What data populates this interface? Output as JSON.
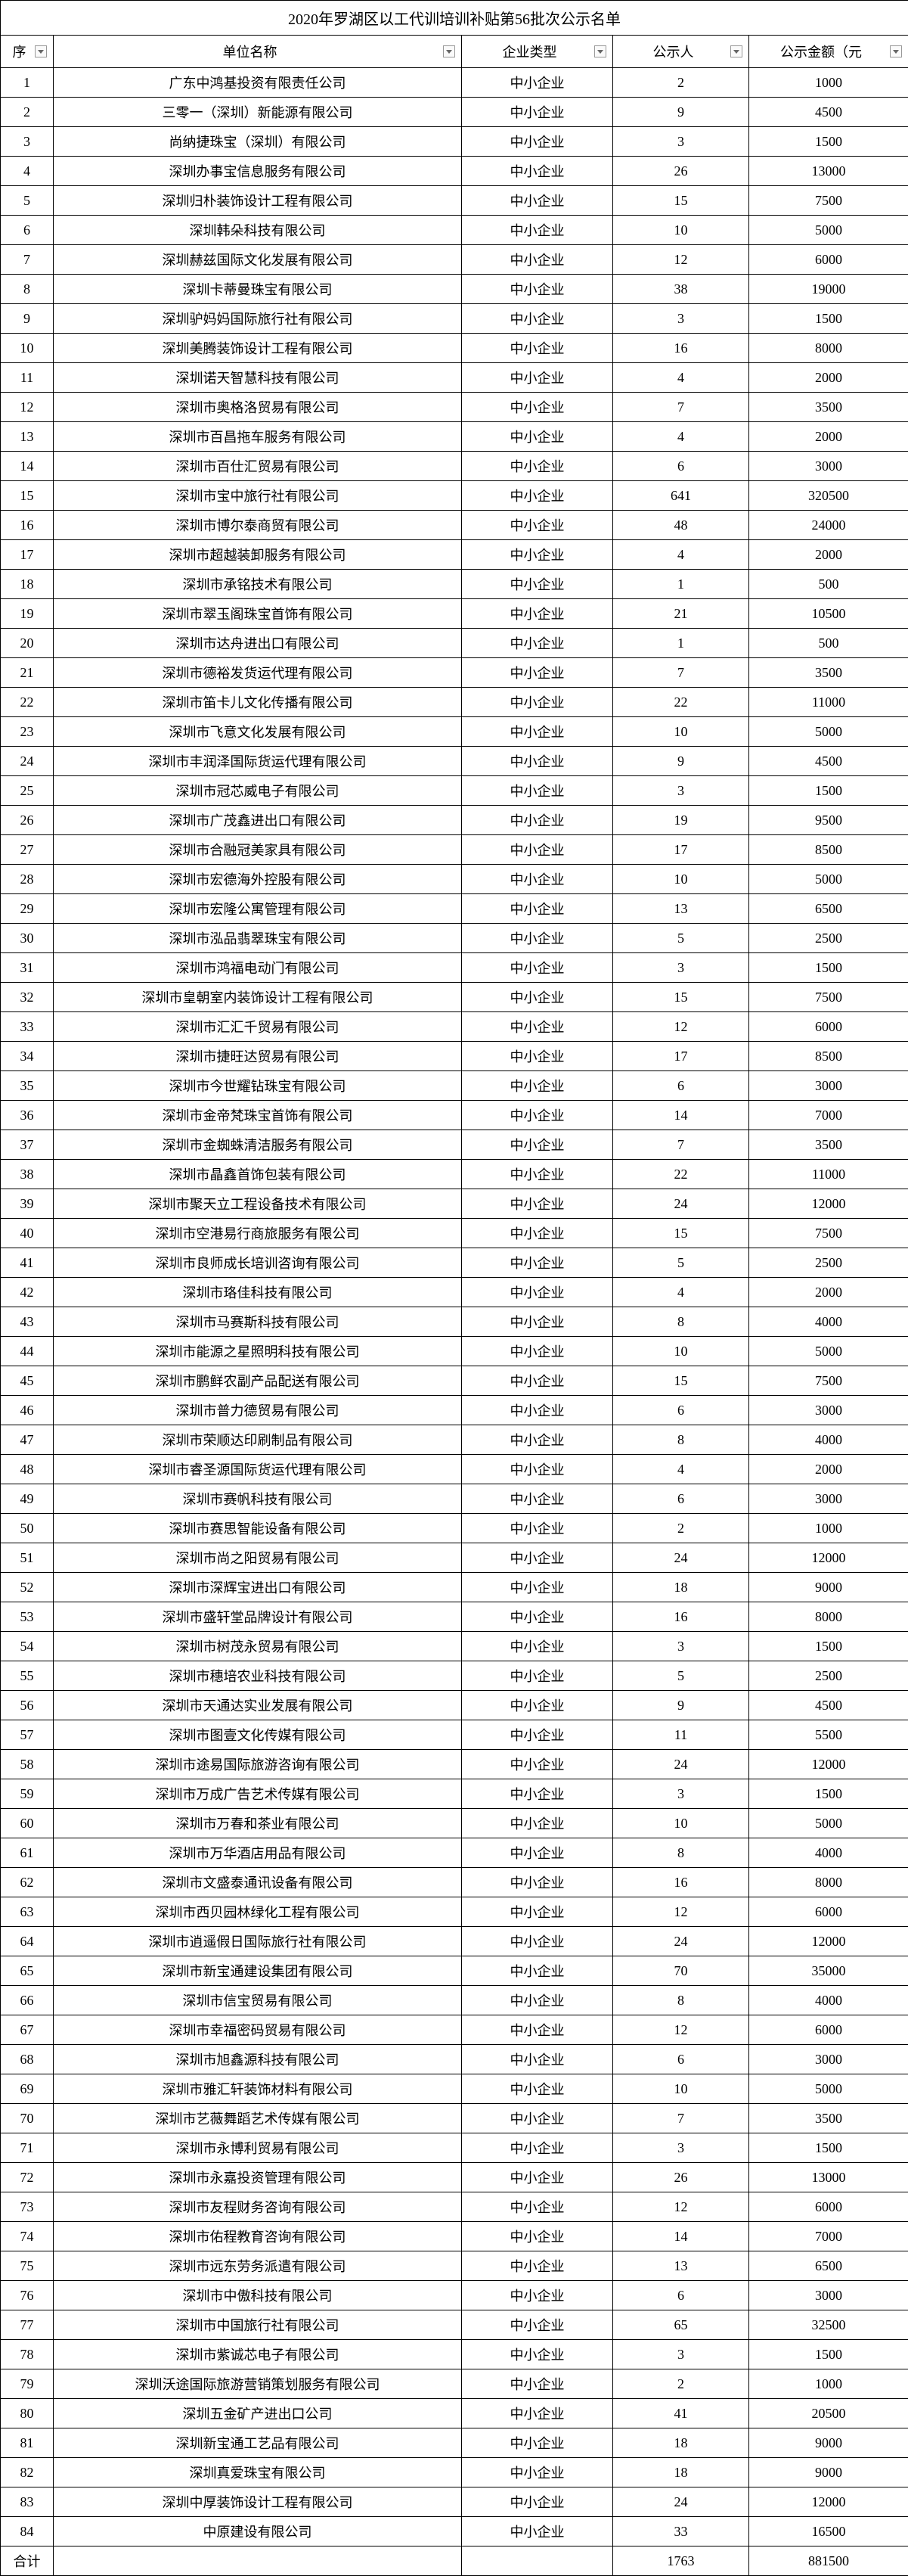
{
  "title": "2020年罗湖区以工代训培训补贴第56批次公示名单",
  "columns": {
    "seq": "序",
    "name": "单位名称",
    "type": "企业类型",
    "people": "公示人",
    "amount": "公示金额（元"
  },
  "total_label": "合计",
  "total_people": "1763",
  "total_amount": "881500",
  "rows": [
    {
      "seq": "1",
      "name": "广东中鸿基投资有限责任公司",
      "type": "中小企业",
      "people": "2",
      "amount": "1000"
    },
    {
      "seq": "2",
      "name": "三零一（深圳）新能源有限公司",
      "type": "中小企业",
      "people": "9",
      "amount": "4500"
    },
    {
      "seq": "3",
      "name": "尚纳捷珠宝（深圳）有限公司",
      "type": "中小企业",
      "people": "3",
      "amount": "1500"
    },
    {
      "seq": "4",
      "name": "深圳办事宝信息服务有限公司",
      "type": "中小企业",
      "people": "26",
      "amount": "13000"
    },
    {
      "seq": "5",
      "name": "深圳归朴装饰设计工程有限公司",
      "type": "中小企业",
      "people": "15",
      "amount": "7500"
    },
    {
      "seq": "6",
      "name": "深圳韩朵科技有限公司",
      "type": "中小企业",
      "people": "10",
      "amount": "5000"
    },
    {
      "seq": "7",
      "name": "深圳赫兹国际文化发展有限公司",
      "type": "中小企业",
      "people": "12",
      "amount": "6000"
    },
    {
      "seq": "8",
      "name": "深圳卡蒂曼珠宝有限公司",
      "type": "中小企业",
      "people": "38",
      "amount": "19000"
    },
    {
      "seq": "9",
      "name": "深圳驴妈妈国际旅行社有限公司",
      "type": "中小企业",
      "people": "3",
      "amount": "1500"
    },
    {
      "seq": "10",
      "name": "深圳美腾装饰设计工程有限公司",
      "type": "中小企业",
      "people": "16",
      "amount": "8000"
    },
    {
      "seq": "11",
      "name": "深圳诺天智慧科技有限公司",
      "type": "中小企业",
      "people": "4",
      "amount": "2000"
    },
    {
      "seq": "12",
      "name": "深圳市奥格洛贸易有限公司",
      "type": "中小企业",
      "people": "7",
      "amount": "3500"
    },
    {
      "seq": "13",
      "name": "深圳市百昌拖车服务有限公司",
      "type": "中小企业",
      "people": "4",
      "amount": "2000"
    },
    {
      "seq": "14",
      "name": "深圳市百仕汇贸易有限公司",
      "type": "中小企业",
      "people": "6",
      "amount": "3000"
    },
    {
      "seq": "15",
      "name": "深圳市宝中旅行社有限公司",
      "type": "中小企业",
      "people": "641",
      "amount": "320500"
    },
    {
      "seq": "16",
      "name": "深圳市博尔泰商贸有限公司",
      "type": "中小企业",
      "people": "48",
      "amount": "24000"
    },
    {
      "seq": "17",
      "name": "深圳市超越装卸服务有限公司",
      "type": "中小企业",
      "people": "4",
      "amount": "2000"
    },
    {
      "seq": "18",
      "name": "深圳市承铭技术有限公司",
      "type": "中小企业",
      "people": "1",
      "amount": "500"
    },
    {
      "seq": "19",
      "name": "深圳市翠玉阁珠宝首饰有限公司",
      "type": "中小企业",
      "people": "21",
      "amount": "10500"
    },
    {
      "seq": "20",
      "name": "深圳市达舟进出口有限公司",
      "type": "中小企业",
      "people": "1",
      "amount": "500"
    },
    {
      "seq": "21",
      "name": "深圳市德裕发货运代理有限公司",
      "type": "中小企业",
      "people": "7",
      "amount": "3500"
    },
    {
      "seq": "22",
      "name": "深圳市笛卡儿文化传播有限公司",
      "type": "中小企业",
      "people": "22",
      "amount": "11000"
    },
    {
      "seq": "23",
      "name": "深圳市飞意文化发展有限公司",
      "type": "中小企业",
      "people": "10",
      "amount": "5000"
    },
    {
      "seq": "24",
      "name": "深圳市丰润泽国际货运代理有限公司",
      "type": "中小企业",
      "people": "9",
      "amount": "4500"
    },
    {
      "seq": "25",
      "name": "深圳市冠芯威电子有限公司",
      "type": "中小企业",
      "people": "3",
      "amount": "1500"
    },
    {
      "seq": "26",
      "name": "深圳市广茂鑫进出口有限公司",
      "type": "中小企业",
      "people": "19",
      "amount": "9500"
    },
    {
      "seq": "27",
      "name": "深圳市合融冠美家具有限公司",
      "type": "中小企业",
      "people": "17",
      "amount": "8500"
    },
    {
      "seq": "28",
      "name": "深圳市宏德海外控股有限公司",
      "type": "中小企业",
      "people": "10",
      "amount": "5000"
    },
    {
      "seq": "29",
      "name": "深圳市宏隆公寓管理有限公司",
      "type": "中小企业",
      "people": "13",
      "amount": "6500"
    },
    {
      "seq": "30",
      "name": "深圳市泓品翡翠珠宝有限公司",
      "type": "中小企业",
      "people": "5",
      "amount": "2500"
    },
    {
      "seq": "31",
      "name": "深圳市鸿福电动门有限公司",
      "type": "中小企业",
      "people": "3",
      "amount": "1500"
    },
    {
      "seq": "32",
      "name": "深圳市皇朝室内装饰设计工程有限公司",
      "type": "中小企业",
      "people": "15",
      "amount": "7500"
    },
    {
      "seq": "33",
      "name": "深圳市汇汇千贸易有限公司",
      "type": "中小企业",
      "people": "12",
      "amount": "6000"
    },
    {
      "seq": "34",
      "name": "深圳市捷旺达贸易有限公司",
      "type": "中小企业",
      "people": "17",
      "amount": "8500"
    },
    {
      "seq": "35",
      "name": "深圳市今世耀钻珠宝有限公司",
      "type": "中小企业",
      "people": "6",
      "amount": "3000"
    },
    {
      "seq": "36",
      "name": "深圳市金帝梵珠宝首饰有限公司",
      "type": "中小企业",
      "people": "14",
      "amount": "7000"
    },
    {
      "seq": "37",
      "name": "深圳市金蜘蛛清洁服务有限公司",
      "type": "中小企业",
      "people": "7",
      "amount": "3500"
    },
    {
      "seq": "38",
      "name": "深圳市晶鑫首饰包装有限公司",
      "type": "中小企业",
      "people": "22",
      "amount": "11000"
    },
    {
      "seq": "39",
      "name": "深圳市聚天立工程设备技术有限公司",
      "type": "中小企业",
      "people": "24",
      "amount": "12000"
    },
    {
      "seq": "40",
      "name": "深圳市空港易行商旅服务有限公司",
      "type": "中小企业",
      "people": "15",
      "amount": "7500"
    },
    {
      "seq": "41",
      "name": "深圳市良师成长培训咨询有限公司",
      "type": "中小企业",
      "people": "5",
      "amount": "2500"
    },
    {
      "seq": "42",
      "name": "深圳市珞佳科技有限公司",
      "type": "中小企业",
      "people": "4",
      "amount": "2000"
    },
    {
      "seq": "43",
      "name": "深圳市马赛斯科技有限公司",
      "type": "中小企业",
      "people": "8",
      "amount": "4000"
    },
    {
      "seq": "44",
      "name": "深圳市能源之星照明科技有限公司",
      "type": "中小企业",
      "people": "10",
      "amount": "5000"
    },
    {
      "seq": "45",
      "name": "深圳市鹏鲜农副产品配送有限公司",
      "type": "中小企业",
      "people": "15",
      "amount": "7500"
    },
    {
      "seq": "46",
      "name": "深圳市普力德贸易有限公司",
      "type": "中小企业",
      "people": "6",
      "amount": "3000"
    },
    {
      "seq": "47",
      "name": "深圳市荣顺达印刷制品有限公司",
      "type": "中小企业",
      "people": "8",
      "amount": "4000"
    },
    {
      "seq": "48",
      "name": "深圳市睿圣源国际货运代理有限公司",
      "type": "中小企业",
      "people": "4",
      "amount": "2000"
    },
    {
      "seq": "49",
      "name": "深圳市赛帆科技有限公司",
      "type": "中小企业",
      "people": "6",
      "amount": "3000"
    },
    {
      "seq": "50",
      "name": "深圳市赛思智能设备有限公司",
      "type": "中小企业",
      "people": "2",
      "amount": "1000"
    },
    {
      "seq": "51",
      "name": "深圳市尚之阳贸易有限公司",
      "type": "中小企业",
      "people": "24",
      "amount": "12000"
    },
    {
      "seq": "52",
      "name": "深圳市深辉宝进出口有限公司",
      "type": "中小企业",
      "people": "18",
      "amount": "9000"
    },
    {
      "seq": "53",
      "name": "深圳市盛轩堂品牌设计有限公司",
      "type": "中小企业",
      "people": "16",
      "amount": "8000"
    },
    {
      "seq": "54",
      "name": "深圳市树茂永贸易有限公司",
      "type": "中小企业",
      "people": "3",
      "amount": "1500"
    },
    {
      "seq": "55",
      "name": "深圳市穗培农业科技有限公司",
      "type": "中小企业",
      "people": "5",
      "amount": "2500"
    },
    {
      "seq": "56",
      "name": "深圳市天通达实业发展有限公司",
      "type": "中小企业",
      "people": "9",
      "amount": "4500"
    },
    {
      "seq": "57",
      "name": "深圳市图壹文化传媒有限公司",
      "type": "中小企业",
      "people": "11",
      "amount": "5500"
    },
    {
      "seq": "58",
      "name": "深圳市途易国际旅游咨询有限公司",
      "type": "中小企业",
      "people": "24",
      "amount": "12000"
    },
    {
      "seq": "59",
      "name": "深圳市万成广告艺术传媒有限公司",
      "type": "中小企业",
      "people": "3",
      "amount": "1500"
    },
    {
      "seq": "60",
      "name": "深圳市万春和茶业有限公司",
      "type": "中小企业",
      "people": "10",
      "amount": "5000"
    },
    {
      "seq": "61",
      "name": "深圳市万华酒店用品有限公司",
      "type": "中小企业",
      "people": "8",
      "amount": "4000"
    },
    {
      "seq": "62",
      "name": "深圳市文盛泰通讯设备有限公司",
      "type": "中小企业",
      "people": "16",
      "amount": "8000"
    },
    {
      "seq": "63",
      "name": "深圳市西贝园林绿化工程有限公司",
      "type": "中小企业",
      "people": "12",
      "amount": "6000"
    },
    {
      "seq": "64",
      "name": "深圳市逍遥假日国际旅行社有限公司",
      "type": "中小企业",
      "people": "24",
      "amount": "12000"
    },
    {
      "seq": "65",
      "name": "深圳市新宝通建设集团有限公司",
      "type": "中小企业",
      "people": "70",
      "amount": "35000"
    },
    {
      "seq": "66",
      "name": "深圳市信宝贸易有限公司",
      "type": "中小企业",
      "people": "8",
      "amount": "4000"
    },
    {
      "seq": "67",
      "name": "深圳市幸福密码贸易有限公司",
      "type": "中小企业",
      "people": "12",
      "amount": "6000"
    },
    {
      "seq": "68",
      "name": "深圳市旭鑫源科技有限公司",
      "type": "中小企业",
      "people": "6",
      "amount": "3000"
    },
    {
      "seq": "69",
      "name": "深圳市雅汇轩装饰材料有限公司",
      "type": "中小企业",
      "people": "10",
      "amount": "5000"
    },
    {
      "seq": "70",
      "name": "深圳市艺薇舞蹈艺术传媒有限公司",
      "type": "中小企业",
      "people": "7",
      "amount": "3500"
    },
    {
      "seq": "71",
      "name": "深圳市永博利贸易有限公司",
      "type": "中小企业",
      "people": "3",
      "amount": "1500"
    },
    {
      "seq": "72",
      "name": "深圳市永嘉投资管理有限公司",
      "type": "中小企业",
      "people": "26",
      "amount": "13000"
    },
    {
      "seq": "73",
      "name": "深圳市友程财务咨询有限公司",
      "type": "中小企业",
      "people": "12",
      "amount": "6000"
    },
    {
      "seq": "74",
      "name": "深圳市佑程教育咨询有限公司",
      "type": "中小企业",
      "people": "14",
      "amount": "7000"
    },
    {
      "seq": "75",
      "name": "深圳市远东劳务派遣有限公司",
      "type": "中小企业",
      "people": "13",
      "amount": "6500"
    },
    {
      "seq": "76",
      "name": "深圳市中傲科技有限公司",
      "type": "中小企业",
      "people": "6",
      "amount": "3000"
    },
    {
      "seq": "77",
      "name": "深圳市中国旅行社有限公司",
      "type": "中小企业",
      "people": "65",
      "amount": "32500"
    },
    {
      "seq": "78",
      "name": "深圳市紫诚芯电子有限公司",
      "type": "中小企业",
      "people": "3",
      "amount": "1500"
    },
    {
      "seq": "79",
      "name": "深圳沃途国际旅游营销策划服务有限公司",
      "type": "中小企业",
      "people": "2",
      "amount": "1000"
    },
    {
      "seq": "80",
      "name": "深圳五金矿产进出口公司",
      "type": "中小企业",
      "people": "41",
      "amount": "20500"
    },
    {
      "seq": "81",
      "name": "深圳新宝通工艺品有限公司",
      "type": "中小企业",
      "people": "18",
      "amount": "9000"
    },
    {
      "seq": "82",
      "name": "深圳真爱珠宝有限公司",
      "type": "中小企业",
      "people": "18",
      "amount": "9000"
    },
    {
      "seq": "83",
      "name": "深圳中厚装饰设计工程有限公司",
      "type": "中小企业",
      "people": "24",
      "amount": "12000"
    },
    {
      "seq": "84",
      "name": "中原建设有限公司",
      "type": "中小企业",
      "people": "33",
      "amount": "16500"
    }
  ]
}
